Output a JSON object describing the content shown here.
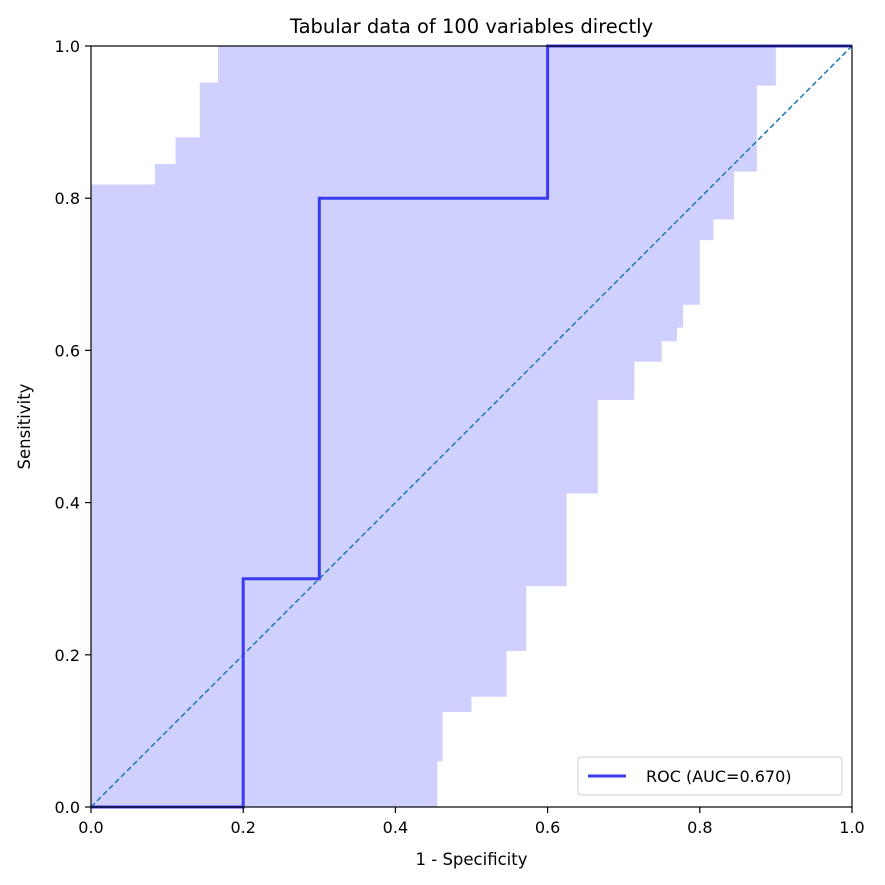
{
  "chart_data": {
    "type": "line",
    "title": "Tabular data of 100 variables directly",
    "xlabel": "1 - Specificity",
    "ylabel": "Sensitivity",
    "xlim": [
      0,
      1
    ],
    "ylim": [
      0,
      1
    ],
    "xticks": [
      "0.0",
      "0.2",
      "0.4",
      "0.6",
      "0.8",
      "1.0"
    ],
    "yticks": [
      "0.0",
      "0.2",
      "0.4",
      "0.6",
      "0.8",
      "1.0"
    ],
    "grid": false,
    "legend_position": "lower-right",
    "series": [
      {
        "name": "ROC (AUC=0.670)",
        "color": "#3b3bf0",
        "x": [
          0.0,
          0.2,
          0.2,
          0.3,
          0.3,
          0.6,
          0.6,
          1.0
        ],
        "y": [
          0.0,
          0.0,
          0.3,
          0.3,
          0.8,
          0.8,
          1.0,
          1.0
        ]
      }
    ],
    "diagonal": {
      "color": "#1f77b4",
      "style": "dashed",
      "x": [
        0,
        1
      ],
      "y": [
        0,
        1
      ]
    },
    "confidence_band": {
      "color": "#d0d0ff",
      "lower": [
        [
          0.455,
          0.0
        ],
        [
          0.455,
          0.06
        ],
        [
          0.462,
          0.06
        ],
        [
          0.462,
          0.125
        ],
        [
          0.5,
          0.125
        ],
        [
          0.5,
          0.145
        ],
        [
          0.546,
          0.145
        ],
        [
          0.546,
          0.205
        ],
        [
          0.572,
          0.205
        ],
        [
          0.572,
          0.29
        ],
        [
          0.625,
          0.29
        ],
        [
          0.625,
          0.412
        ],
        [
          0.666,
          0.412
        ],
        [
          0.666,
          0.535
        ],
        [
          0.714,
          0.535
        ],
        [
          0.714,
          0.585
        ],
        [
          0.75,
          0.585
        ],
        [
          0.75,
          0.612
        ],
        [
          0.77,
          0.612
        ],
        [
          0.77,
          0.63
        ],
        [
          0.778,
          0.63
        ],
        [
          0.778,
          0.66
        ],
        [
          0.8,
          0.66
        ],
        [
          0.8,
          0.745
        ],
        [
          0.818,
          0.745
        ],
        [
          0.818,
          0.772
        ],
        [
          0.845,
          0.772
        ],
        [
          0.845,
          0.835
        ],
        [
          0.875,
          0.835
        ],
        [
          0.875,
          0.948
        ],
        [
          0.9,
          0.948
        ],
        [
          0.9,
          1.0
        ]
      ],
      "upper": [
        [
          0.167,
          1.0
        ],
        [
          0.167,
          0.952
        ],
        [
          0.143,
          0.952
        ],
        [
          0.143,
          0.88
        ],
        [
          0.111,
          0.88
        ],
        [
          0.111,
          0.845
        ],
        [
          0.084,
          0.845
        ],
        [
          0.084,
          0.818
        ],
        [
          0.0,
          0.818
        ]
      ]
    }
  }
}
